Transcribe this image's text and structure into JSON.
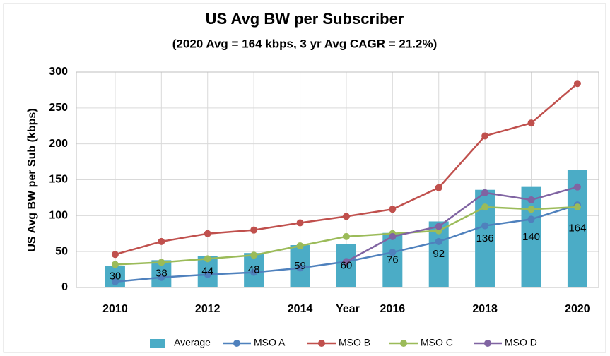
{
  "chart_data": {
    "type": "bar",
    "title": "US Avg BW per Subscriber",
    "subtitle": "(2020 Avg = 164 kbps, 3 yr Avg CAGR = 21.2%)",
    "x_label": "Year",
    "y_label": "US Avg BW per Sub (kbps)",
    "x": [
      2010,
      2011,
      2012,
      2013,
      2014,
      2015,
      2016,
      2017,
      2018,
      2019,
      2020
    ],
    "xlim": [
      2009.16,
      2020.46
    ],
    "xticks": [
      2010,
      2012,
      2014,
      2016,
      2018,
      2020
    ],
    "ylim": [
      0,
      300
    ],
    "yticks": [
      0,
      50,
      100,
      150,
      200,
      250,
      300
    ],
    "grid": true,
    "legend": "bottom",
    "series": [
      {
        "name": "Average",
        "type": "bar",
        "color": "#4bacc6",
        "values": [
          30,
          38,
          44,
          48,
          59,
          60,
          76,
          92,
          136,
          140,
          164
        ]
      },
      {
        "name": "MSO A",
        "type": "line",
        "color": "#4f81bd",
        "values": [
          8,
          14,
          18,
          21,
          27,
          36,
          49,
          64,
          86,
          95,
          115
        ]
      },
      {
        "name": "MSO B",
        "type": "line",
        "color": "#c0504d",
        "values": [
          46,
          64,
          75,
          80,
          90,
          99,
          109,
          139,
          211,
          229,
          284
        ]
      },
      {
        "name": "MSO C",
        "type": "line",
        "color": "#9bbb59",
        "values": [
          32,
          35,
          40,
          45,
          58,
          71,
          75,
          79,
          112,
          109,
          112
        ]
      },
      {
        "name": "MSO D",
        "type": "line",
        "color": "#8064a2",
        "values": [
          null,
          null,
          null,
          null,
          null,
          36,
          71,
          85,
          132,
          122,
          140
        ]
      }
    ]
  }
}
